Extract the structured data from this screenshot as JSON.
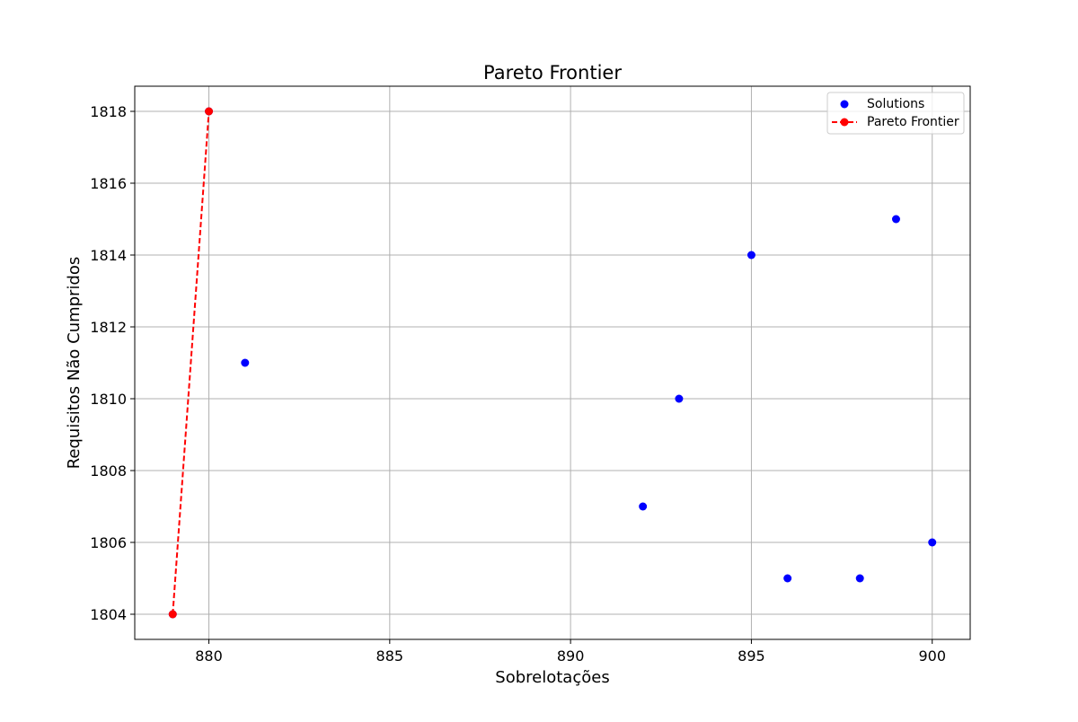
{
  "chart_data": {
    "type": "scatter",
    "title": "Pareto Frontier",
    "xlabel": "Sobrelotações",
    "ylabel": "Requisitos Não Cumpridos",
    "xlim": [
      877.95,
      901.05
    ],
    "ylim": [
      1803.3,
      1818.7
    ],
    "xticks": [
      880,
      885,
      890,
      895,
      900
    ],
    "yticks": [
      1804,
      1806,
      1808,
      1810,
      1812,
      1814,
      1816,
      1818
    ],
    "grid": true,
    "legend_position": "top-right",
    "series": [
      {
        "name": "Solutions",
        "kind": "scatter",
        "color": "#0000ff",
        "points": [
          {
            "x": 879,
            "y": 1804
          },
          {
            "x": 880,
            "y": 1818
          },
          {
            "x": 881,
            "y": 1811
          },
          {
            "x": 892,
            "y": 1807
          },
          {
            "x": 893,
            "y": 1810
          },
          {
            "x": 895,
            "y": 1814
          },
          {
            "x": 896,
            "y": 1805
          },
          {
            "x": 898,
            "y": 1805
          },
          {
            "x": 899,
            "y": 1815
          },
          {
            "x": 900,
            "y": 1806
          }
        ]
      },
      {
        "name": "Pareto Frontier",
        "kind": "line-dashed-markers",
        "color": "#ff0000",
        "points": [
          {
            "x": 879,
            "y": 1804
          },
          {
            "x": 880,
            "y": 1818
          }
        ]
      }
    ]
  }
}
